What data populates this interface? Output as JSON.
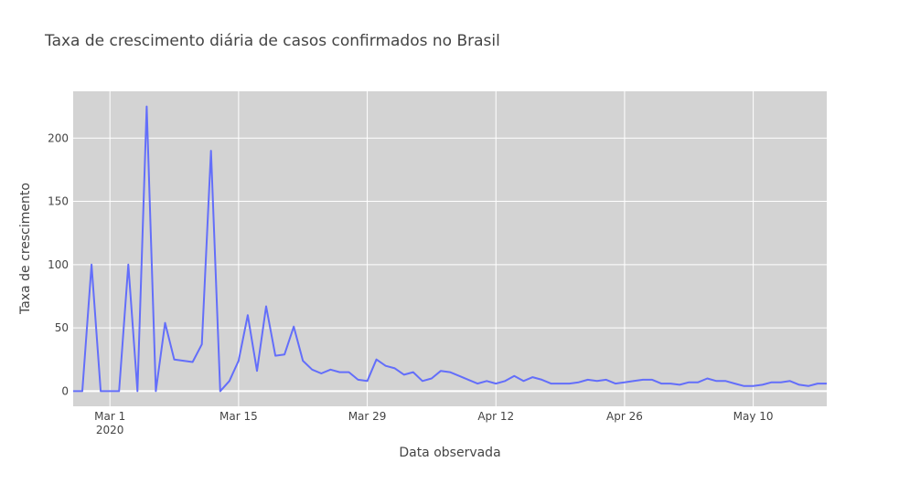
{
  "chart_data": {
    "type": "line",
    "title": "Taxa de crescimento diária de casos confirmados no Brasil",
    "xlabel": "Data observada",
    "ylabel": "Taxa de crescimento",
    "x_tick_labels": [
      "Mar 1",
      "Mar 15",
      "Mar 29",
      "Apr 12",
      "Apr 26",
      "May 10"
    ],
    "x_year_label": "2020",
    "y_tick_labels": [
      "0",
      "50",
      "100",
      "150",
      "200"
    ],
    "y_ticks": [
      0,
      50,
      100,
      150,
      200
    ],
    "xlim": [
      "2020-02-26",
      "2020-05-18"
    ],
    "ylim": [
      -12,
      237
    ],
    "grid": true,
    "legend": "none",
    "line_color": "#636efa",
    "plot_bg_color": "#d3d3d3",
    "series": [
      {
        "dates": [
          "2020-02-26",
          "2020-02-27",
          "2020-02-28",
          "2020-02-29",
          "2020-03-01",
          "2020-03-02",
          "2020-03-03",
          "2020-03-04",
          "2020-03-05",
          "2020-03-06",
          "2020-03-07",
          "2020-03-08",
          "2020-03-09",
          "2020-03-10",
          "2020-03-11",
          "2020-03-12",
          "2020-03-13",
          "2020-03-14",
          "2020-03-15",
          "2020-03-16",
          "2020-03-17",
          "2020-03-18",
          "2020-03-19",
          "2020-03-20",
          "2020-03-21",
          "2020-03-22",
          "2020-03-23",
          "2020-03-24",
          "2020-03-25",
          "2020-03-26",
          "2020-03-27",
          "2020-03-28",
          "2020-03-29",
          "2020-03-30",
          "2020-03-31",
          "2020-04-01",
          "2020-04-02",
          "2020-04-03",
          "2020-04-04",
          "2020-04-05",
          "2020-04-06",
          "2020-04-07",
          "2020-04-08",
          "2020-04-09",
          "2020-04-10",
          "2020-04-11",
          "2020-04-12",
          "2020-04-13",
          "2020-04-14",
          "2020-04-15",
          "2020-04-16",
          "2020-04-17",
          "2020-04-18",
          "2020-04-19",
          "2020-04-20",
          "2020-04-21",
          "2020-04-22",
          "2020-04-23",
          "2020-04-24",
          "2020-04-25",
          "2020-04-26",
          "2020-04-27",
          "2020-04-28",
          "2020-04-29",
          "2020-04-30",
          "2020-05-01",
          "2020-05-02",
          "2020-05-03",
          "2020-05-04",
          "2020-05-05",
          "2020-05-06",
          "2020-05-07",
          "2020-05-08",
          "2020-05-09",
          "2020-05-10",
          "2020-05-11",
          "2020-05-12",
          "2020-05-13",
          "2020-05-14",
          "2020-05-15",
          "2020-05-16",
          "2020-05-17",
          "2020-05-18"
        ],
        "values": [
          0,
          0,
          100,
          0,
          0,
          0,
          100,
          0,
          225,
          0,
          54,
          25,
          24,
          23,
          37,
          190,
          0,
          8,
          24,
          60,
          16,
          67,
          28,
          29,
          51,
          24,
          17,
          14,
          17,
          15,
          15,
          9,
          8,
          25,
          20,
          18,
          13,
          15,
          8,
          10,
          16,
          15,
          12,
          9,
          6,
          8,
          6,
          8,
          12,
          8,
          11,
          9,
          6,
          6,
          6,
          7,
          9,
          8,
          9,
          6,
          7,
          8,
          9,
          9,
          6,
          6,
          5,
          7,
          7,
          10,
          8,
          8,
          6,
          4,
          4,
          5,
          7,
          7,
          8,
          5,
          4,
          6,
          6
        ]
      }
    ]
  }
}
